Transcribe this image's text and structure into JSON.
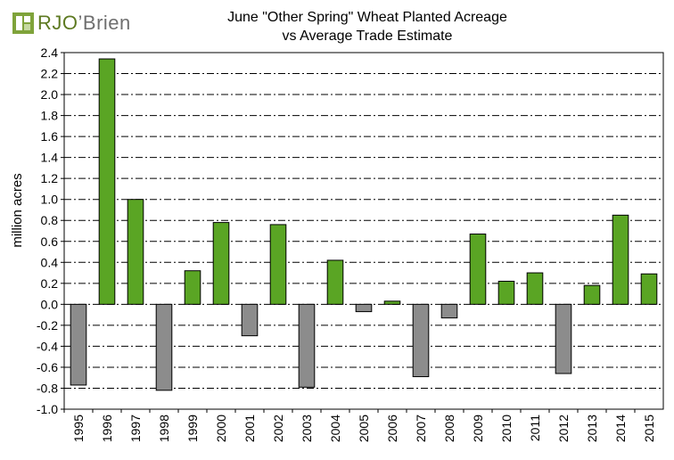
{
  "logo": {
    "text_main": "RJO",
    "text_apostrophe": "’",
    "text_sub": "Brien"
  },
  "colors": {
    "positive": "#5aa524",
    "negative": "#8c8c8c",
    "bar_stroke": "#000000",
    "grid": "#000000",
    "logo_green": "#5e7a22"
  },
  "chart_data": {
    "type": "bar",
    "title": [
      "June \"Other Spring\" Wheat Planted Acreage",
      "vs Average Trade Estimate"
    ],
    "xlabel": "",
    "ylabel": "million acres",
    "ylim": [
      -1.0,
      2.4
    ],
    "ytick_step": 0.2,
    "ytick_labels": [
      "-1.0",
      "-0.8",
      "-0.6",
      "-0.4",
      "-0.2",
      "0.0",
      "0.2",
      "0.4",
      "0.6",
      "0.8",
      "1.0",
      "1.2",
      "1.4",
      "1.6",
      "1.8",
      "2.0",
      "2.2",
      "2.4"
    ],
    "grid": true,
    "grid_style": "dash-dot",
    "categories": [
      "1995",
      "1996",
      "1997",
      "1998",
      "1999",
      "2000",
      "2001",
      "2002",
      "2003",
      "2004",
      "2005",
      "2006",
      "2007",
      "2008",
      "2009",
      "2010",
      "2011",
      "2012",
      "2013",
      "2014",
      "2015"
    ],
    "values": [
      -0.77,
      2.34,
      1.0,
      -0.82,
      0.32,
      0.78,
      -0.3,
      0.76,
      -0.79,
      0.42,
      -0.07,
      0.03,
      -0.69,
      -0.13,
      0.67,
      0.22,
      0.3,
      -0.66,
      0.18,
      0.85,
      0.29
    ]
  }
}
